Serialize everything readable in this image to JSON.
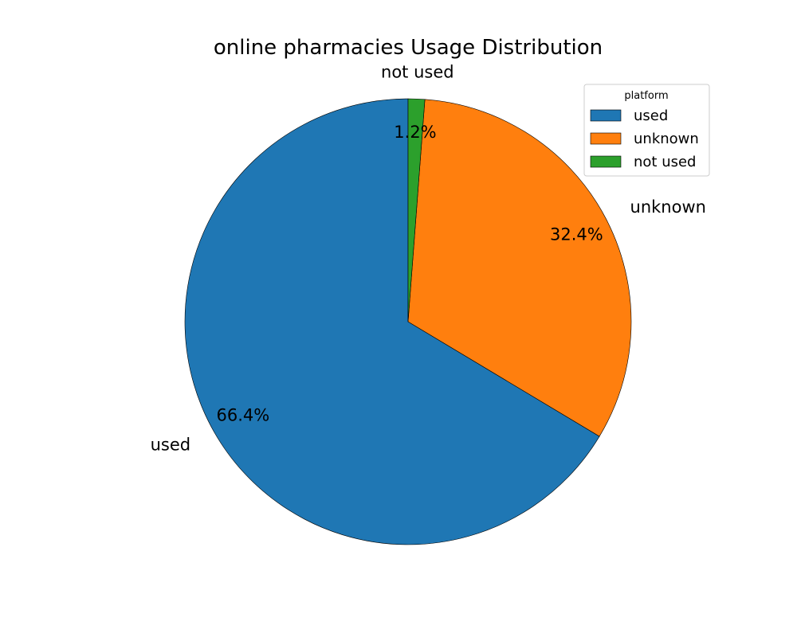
{
  "chart_data": {
    "type": "pie",
    "title": "online pharmacies Usage Distribution",
    "start_angle_deg": 90,
    "direction": "clockwise-from-top-reverse",
    "slices": [
      {
        "label": "used",
        "percent": 66.4,
        "color": "#1f77b4"
      },
      {
        "label": "unknown",
        "percent": 32.4,
        "color": "#ff7f0e"
      },
      {
        "label": "not used",
        "percent": 1.2,
        "color": "#2ca02c"
      }
    ],
    "legend": {
      "title": "platform",
      "position": "top-right",
      "entries": [
        "used",
        "unknown",
        "not used"
      ]
    }
  }
}
